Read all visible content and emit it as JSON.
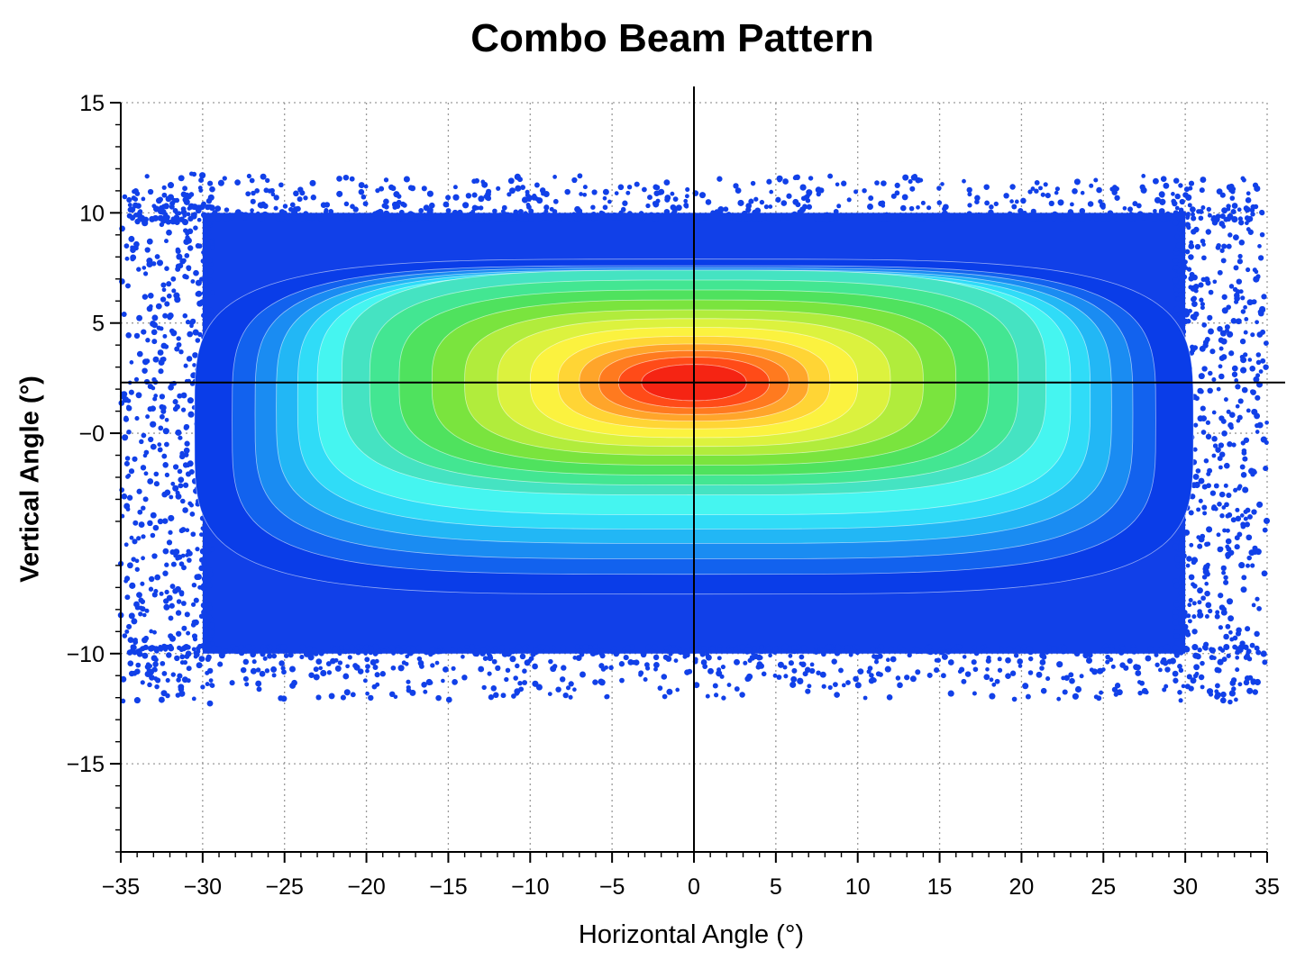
{
  "chart_data": {
    "type": "heatmap",
    "title": "Combo Beam Pattern",
    "xlabel": "Horizontal Angle (°)",
    "ylabel": "Vertical Angle (°)",
    "xlim": [
      -35,
      35
    ],
    "ylim": [
      -19,
      15
    ],
    "x_ticks": [
      -35,
      -30,
      -25,
      -20,
      -15,
      -10,
      -5,
      0,
      5,
      10,
      15,
      20,
      25,
      30,
      35
    ],
    "y_ticks": [
      15,
      10,
      5,
      0,
      -10,
      -15
    ],
    "y_tick_labels": [
      "15",
      "10",
      "5",
      "−0",
      "−10",
      "−15"
    ],
    "x_tick_labels": [
      "−35",
      "−30",
      "−25",
      "−20",
      "−15",
      "−10",
      "−5",
      "0",
      "5",
      "10",
      "15",
      "20",
      "25",
      "30",
      "35"
    ],
    "grid": true,
    "grid_style": "dotted",
    "crosshair": {
      "x": 0,
      "y": 2.3
    },
    "beam_center": {
      "x": 0,
      "y": 2.3
    },
    "beam_extent": {
      "x": [
        -30,
        30
      ],
      "y": [
        -10,
        10
      ]
    },
    "scatter_extent": {
      "x": [
        -35,
        35
      ],
      "y": [
        -12.5,
        12
      ]
    },
    "contour_levels": [
      {
        "level": 1,
        "half_width": 30.5,
        "half_height": 7.6,
        "color": "#0a3de8"
      },
      {
        "level": 2,
        "half_width": 28.2,
        "half_height": 7.0,
        "color": "#1262ee"
      },
      {
        "level": 3,
        "half_width": 26.8,
        "half_height": 6.6,
        "color": "#1a8cf2"
      },
      {
        "level": 4,
        "half_width": 25.5,
        "half_height": 6.2,
        "color": "#22b7f5"
      },
      {
        "level": 5,
        "half_width": 24.2,
        "half_height": 5.85,
        "color": "#30dcf7"
      },
      {
        "level": 6,
        "half_width": 23.0,
        "half_height": 5.5,
        "color": "#45f5f0"
      },
      {
        "level": 7,
        "half_width": 21.5,
        "half_height": 5.1,
        "color": "#45e3c2"
      },
      {
        "level": 8,
        "half_width": 19.8,
        "half_height": 4.65,
        "color": "#43e692"
      },
      {
        "level": 9,
        "half_width": 18.0,
        "half_height": 4.2,
        "color": "#4fe25e"
      },
      {
        "level": 10,
        "half_width": 16.0,
        "half_height": 3.75,
        "color": "#7ae43e"
      },
      {
        "level": 11,
        "half_width": 14.0,
        "half_height": 3.3,
        "color": "#b1ec3c"
      },
      {
        "level": 12,
        "half_width": 12.0,
        "half_height": 2.9,
        "color": "#dcf23e"
      },
      {
        "level": 13,
        "half_width": 10.0,
        "half_height": 2.5,
        "color": "#fbf23f"
      },
      {
        "level": 14,
        "half_width": 8.3,
        "half_height": 2.1,
        "color": "#ffd535"
      },
      {
        "level": 15,
        "half_width": 7.0,
        "half_height": 1.75,
        "color": "#ffa52a"
      },
      {
        "level": 16,
        "half_width": 5.8,
        "half_height": 1.45,
        "color": "#ff7a1f"
      },
      {
        "level": 17,
        "half_width": 4.6,
        "half_height": 1.15,
        "color": "#ff4b18"
      },
      {
        "level": 18,
        "half_width": 3.2,
        "half_height": 0.82,
        "color": "#f52413"
      }
    ],
    "scatter_color": "#1140e8"
  }
}
